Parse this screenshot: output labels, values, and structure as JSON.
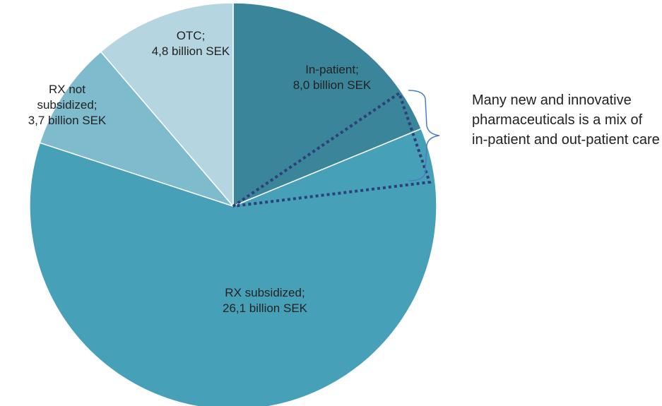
{
  "chart_data": {
    "type": "pie",
    "categories": [
      "In-patient;",
      "RX subsidized;",
      "RX not subsidized;",
      "OTC;"
    ],
    "values": [
      8.0,
      26.1,
      3.7,
      4.8
    ],
    "value_labels": [
      "8,0 billion SEK",
      "26,1 billion SEK",
      "3,7 billion SEK",
      "4,8 billion SEK"
    ],
    "colors": [
      "#3a8599",
      "#46a1b8",
      "#7dbbcd",
      "#b5d5e0"
    ],
    "annotation": "Many new and innovative pharmaceuticals is a mix of in-patient and out-patient care"
  }
}
